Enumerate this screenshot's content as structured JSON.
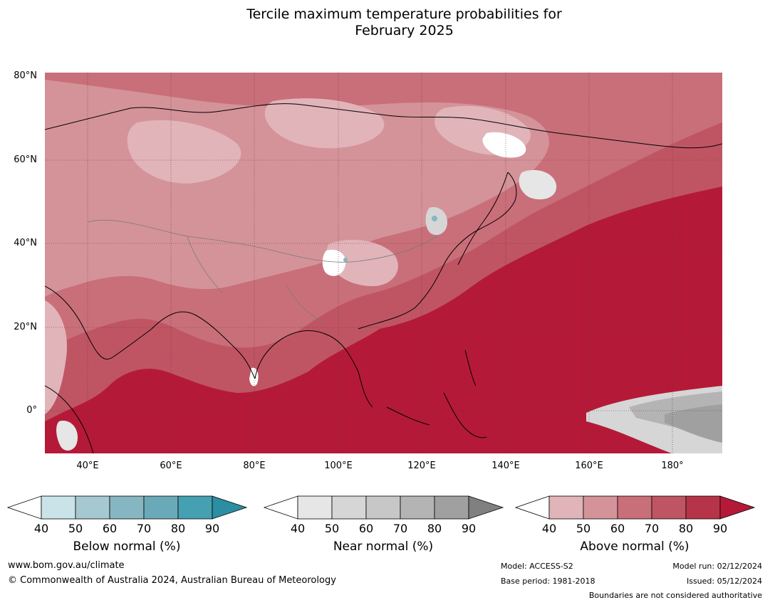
{
  "title_line1": "Tercile maximum temperature probabilities for",
  "title_line2": "February 2025",
  "lat_labels": [
    "80°N",
    "60°N",
    "40°N",
    "20°N",
    "0°"
  ],
  "lon_labels": [
    "40°E",
    "60°E",
    "80°E",
    "100°E",
    "120°E",
    "140°E",
    "160°E",
    "180°"
  ],
  "colorbars": [
    {
      "label": "Below normal (%)",
      "ticks": [
        "40",
        "50",
        "60",
        "70",
        "80",
        "90"
      ],
      "colors": [
        "#ffffff",
        "#c9e3e9",
        "#a6c8d0",
        "#86b6c2",
        "#6aaab8",
        "#45a0b1",
        "#2b8ea3"
      ]
    },
    {
      "label": "Near normal (%)",
      "ticks": [
        "40",
        "50",
        "60",
        "70",
        "80",
        "90"
      ],
      "colors": [
        "#ffffff",
        "#e6e6e6",
        "#d6d6d6",
        "#c7c7c7",
        "#b4b4b4",
        "#a0a0a0",
        "#808080"
      ]
    },
    {
      "label": "Above normal (%)",
      "ticks": [
        "40",
        "50",
        "60",
        "70",
        "80",
        "90"
      ],
      "colors": [
        "#ffffff",
        "#e1b4ba",
        "#d49399",
        "#c96f7a",
        "#bf5563",
        "#b73448",
        "#b41a37"
      ]
    }
  ],
  "footer": {
    "url": "www.bom.gov.au/climate",
    "copyright": "© Commonwealth of Australia 2024, Australian Bureau of Meteorology",
    "model": "Model: ACCESS-S2",
    "base_period": "Base period: 1981-2018",
    "model_run": "Model run: 02/12/2024",
    "issued": "Issued: 05/12/2024",
    "disclaimer": "Boundaries are not considered authoritative"
  }
}
